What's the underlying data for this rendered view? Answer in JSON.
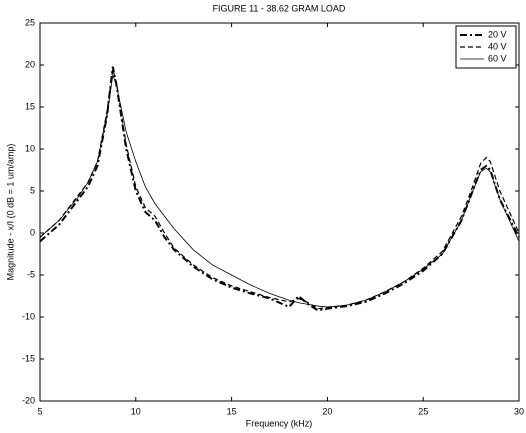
{
  "chart_data": {
    "type": "line",
    "title": "FIGURE 11 - 38.62 GRAM LOAD",
    "x_label": "Frequency (kHz)",
    "y_label": "Magnitude - x/I (0 dB = 1 um/amp)",
    "x": [
      5,
      6,
      7,
      7.5,
      8,
      8.5,
      8.8,
      9,
      9.5,
      10,
      10.5,
      11,
      11.5,
      12,
      13,
      14,
      15,
      16,
      17,
      18,
      18.5,
      19,
      19.5,
      20,
      21,
      22,
      23,
      24,
      25,
      26,
      27,
      27.5,
      28,
      28.3,
      28.5,
      29,
      30
    ],
    "series": [
      {
        "name": "20 V",
        "color": "#000000",
        "style": "dashdot",
        "width": 2,
        "values": [
          -1,
          1,
          4,
          5.5,
          8,
          14,
          19.8,
          17.5,
          10,
          5,
          2.5,
          1.5,
          -0.5,
          -2,
          -4,
          -5.5,
          -6.5,
          -7.2,
          -7.8,
          -8.8,
          -7.5,
          -8.5,
          -9.2,
          -9,
          -8.7,
          -8.2,
          -7.2,
          -6,
          -4.5,
          -2.5,
          1.5,
          4.5,
          7.5,
          8,
          7.5,
          4,
          -0.5
        ]
      },
      {
        "name": "40 V",
        "color": "#000000",
        "style": "dashed",
        "width": 1.2,
        "values": [
          -0.5,
          1.5,
          4.5,
          6,
          8.5,
          14.5,
          19.5,
          17.8,
          10.5,
          5.5,
          3,
          2,
          0,
          -1.8,
          -3.8,
          -5.3,
          -6.3,
          -7,
          -7.7,
          -8.2,
          -7.8,
          -8.3,
          -9,
          -8.9,
          -8.6,
          -8,
          -7,
          -5.8,
          -4.2,
          -2.2,
          2,
          5,
          8.3,
          9,
          8.5,
          5,
          0
        ]
      },
      {
        "name": "60 V",
        "color": "#000000",
        "style": "solid",
        "width": 0.8,
        "values": [
          -0.5,
          1.5,
          4.3,
          6,
          8.5,
          14,
          18.8,
          17.5,
          12,
          8.5,
          5.5,
          3.5,
          2,
          0.5,
          -2,
          -3.8,
          -5,
          -6.2,
          -7.2,
          -8,
          -8.3,
          -8.5,
          -8.7,
          -8.8,
          -8.6,
          -8,
          -7,
          -5.8,
          -4.3,
          -2.5,
          1.5,
          4.5,
          7.3,
          7.7,
          7.3,
          4,
          -1
        ]
      }
    ],
    "xlim": [
      5,
      30
    ],
    "xticks": [
      5,
      10,
      15,
      20,
      25,
      30
    ],
    "ylim": [
      -20,
      25
    ],
    "yticks": [
      -20,
      -15,
      -10,
      -5,
      0,
      5,
      10,
      15,
      20,
      25
    ],
    "legend": "upper-right"
  }
}
